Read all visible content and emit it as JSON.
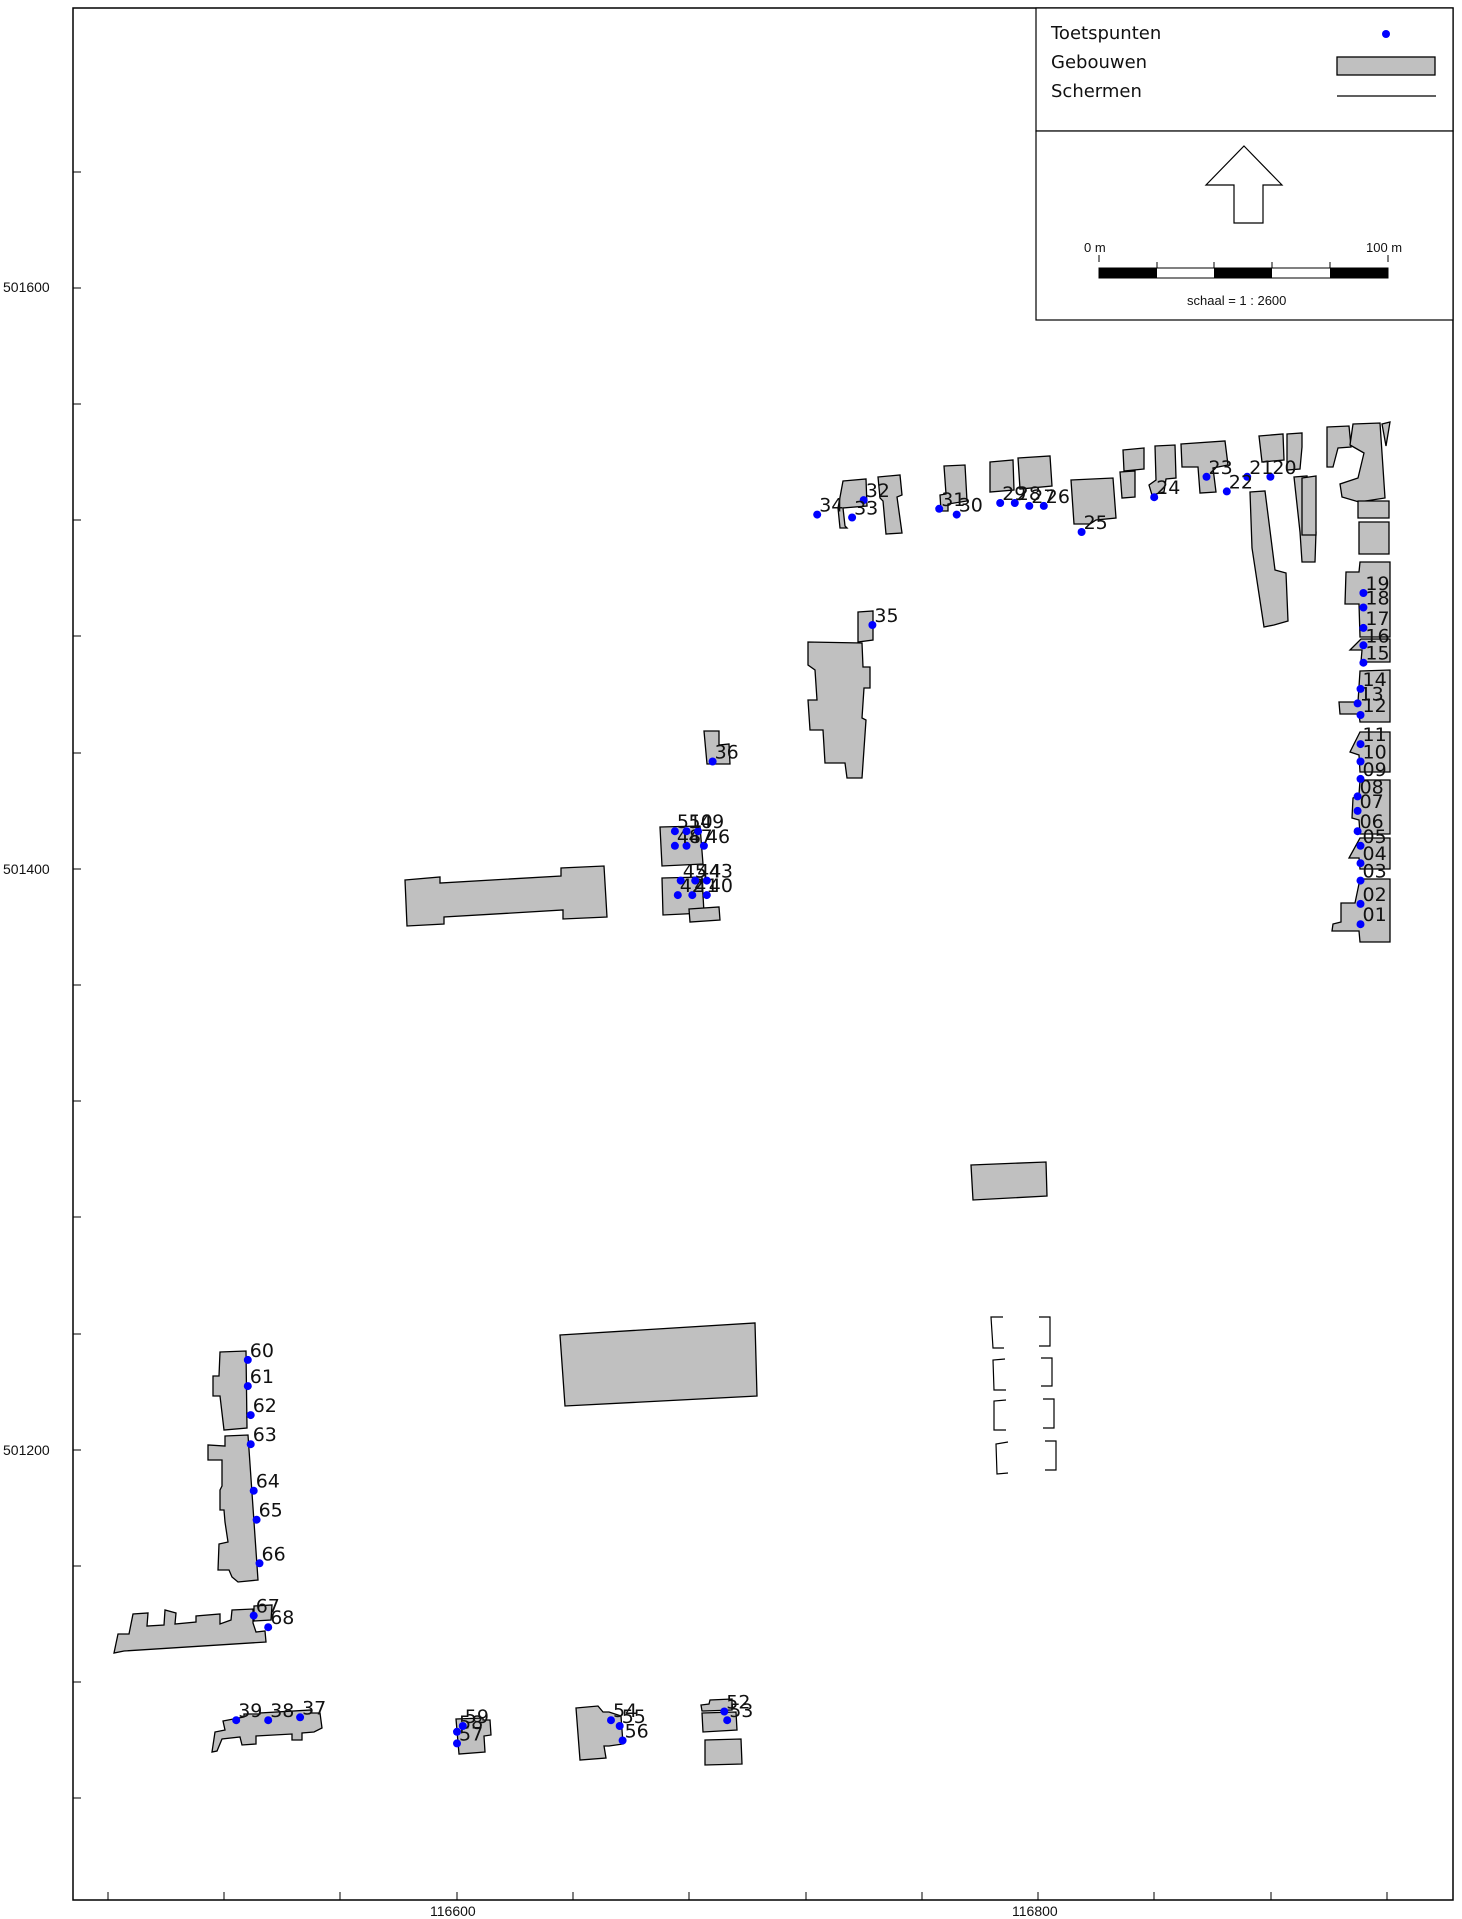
{
  "legend": {
    "points_label": "Toetspunten",
    "buildings_label": "Gebouwen",
    "screens_label": "Schermen"
  },
  "scalebar": {
    "start_label": "0 m",
    "end_label": "100 m",
    "caption": "schaal = 1 : 2600"
  },
  "north_arrow": {
    "icon": "north-arrow-icon"
  },
  "axes": {
    "y_ticks": [
      {
        "label": "501600",
        "value": 501600
      },
      {
        "label": "501400",
        "value": 501400
      },
      {
        "label": "501200",
        "value": 501200
      }
    ],
    "x_ticks": [
      {
        "label": "116600",
        "value": 116600
      },
      {
        "label": "116800",
        "value": 116800
      }
    ]
  },
  "colors": {
    "points": "#0000ff",
    "buildings": "#c0c0c0",
    "outline": "#000000"
  },
  "points": [
    {
      "id": "01",
      "x": 116911,
      "y": 501381
    },
    {
      "id": "02",
      "x": 116911,
      "y": 501388
    },
    {
      "id": "03",
      "x": 116911,
      "y": 501396
    },
    {
      "id": "04",
      "x": 116911,
      "y": 501402
    },
    {
      "id": "05",
      "x": 116911,
      "y": 501408
    },
    {
      "id": "06",
      "x": 116910,
      "y": 501413
    },
    {
      "id": "07",
      "x": 116910,
      "y": 501420
    },
    {
      "id": "08",
      "x": 116910,
      "y": 501425
    },
    {
      "id": "09",
      "x": 116911,
      "y": 501431
    },
    {
      "id": "10",
      "x": 116911,
      "y": 501437
    },
    {
      "id": "11",
      "x": 116911,
      "y": 501443
    },
    {
      "id": "12",
      "x": 116911,
      "y": 501453
    },
    {
      "id": "13",
      "x": 116910,
      "y": 501457
    },
    {
      "id": "14",
      "x": 116911,
      "y": 501462
    },
    {
      "id": "15",
      "x": 116912,
      "y": 501471
    },
    {
      "id": "16",
      "x": 116912,
      "y": 501477
    },
    {
      "id": "17",
      "x": 116912,
      "y": 501483
    },
    {
      "id": "18",
      "x": 116912,
      "y": 501490
    },
    {
      "id": "19",
      "x": 116912,
      "y": 501495
    },
    {
      "id": "20",
      "x": 116880,
      "y": 501535
    },
    {
      "id": "21",
      "x": 116872,
      "y": 501535
    },
    {
      "id": "22",
      "x": 116865,
      "y": 501530
    },
    {
      "id": "23",
      "x": 116858,
      "y": 501535
    },
    {
      "id": "24",
      "x": 116840,
      "y": 501528
    },
    {
      "id": "25",
      "x": 116815,
      "y": 501516
    },
    {
      "id": "26",
      "x": 116802,
      "y": 501525
    },
    {
      "id": "27",
      "x": 116797,
      "y": 501525
    },
    {
      "id": "28",
      "x": 116792,
      "y": 501526
    },
    {
      "id": "29",
      "x": 116787,
      "y": 501526
    },
    {
      "id": "30",
      "x": 116772,
      "y": 501522
    },
    {
      "id": "31",
      "x": 116766,
      "y": 501524
    },
    {
      "id": "32",
      "x": 116740,
      "y": 501527
    },
    {
      "id": "33",
      "x": 116736,
      "y": 501521
    },
    {
      "id": "34",
      "x": 116724,
      "y": 501522
    },
    {
      "id": "35",
      "x": 116743,
      "y": 501484
    },
    {
      "id": "36",
      "x": 116688,
      "y": 501437
    },
    {
      "id": "37",
      "x": 116546,
      "y": 501108
    },
    {
      "id": "38",
      "x": 116535,
      "y": 501107
    },
    {
      "id": "39",
      "x": 116524,
      "y": 501107
    },
    {
      "id": "40",
      "x": 116686,
      "y": 501391
    },
    {
      "id": "41",
      "x": 116681,
      "y": 501391
    },
    {
      "id": "42",
      "x": 116676,
      "y": 501391
    },
    {
      "id": "43",
      "x": 116686,
      "y": 501396
    },
    {
      "id": "44",
      "x": 116682,
      "y": 501396
    },
    {
      "id": "45",
      "x": 116677,
      "y": 501396
    },
    {
      "id": "46",
      "x": 116685,
      "y": 501408
    },
    {
      "id": "47",
      "x": 116679,
      "y": 501408
    },
    {
      "id": "48",
      "x": 116675,
      "y": 501408
    },
    {
      "id": "49",
      "x": 116683,
      "y": 501413
    },
    {
      "id": "50",
      "x": 116679,
      "y": 501413
    },
    {
      "id": "51",
      "x": 116675,
      "y": 501413
    },
    {
      "id": "52",
      "x": 116692,
      "y": 501110
    },
    {
      "id": "53",
      "x": 116693,
      "y": 501107
    },
    {
      "id": "54",
      "x": 116653,
      "y": 501107
    },
    {
      "id": "55",
      "x": 116656,
      "y": 501105
    },
    {
      "id": "56",
      "x": 116657,
      "y": 501100
    },
    {
      "id": "57",
      "x": 116600,
      "y": 501099
    },
    {
      "id": "58",
      "x": 116600,
      "y": 501103
    },
    {
      "id": "59",
      "x": 116602,
      "y": 501105
    },
    {
      "id": "60",
      "x": 116528,
      "y": 501231
    },
    {
      "id": "61",
      "x": 116528,
      "y": 501222
    },
    {
      "id": "62",
      "x": 116529,
      "y": 501212
    },
    {
      "id": "63",
      "x": 116529,
      "y": 501202
    },
    {
      "id": "64",
      "x": 116530,
      "y": 501186
    },
    {
      "id": "65",
      "x": 116531,
      "y": 501176
    },
    {
      "id": "66",
      "x": 116532,
      "y": 501161
    },
    {
      "id": "67",
      "x": 116530,
      "y": 501143
    },
    {
      "id": "68",
      "x": 116535,
      "y": 501139
    }
  ]
}
